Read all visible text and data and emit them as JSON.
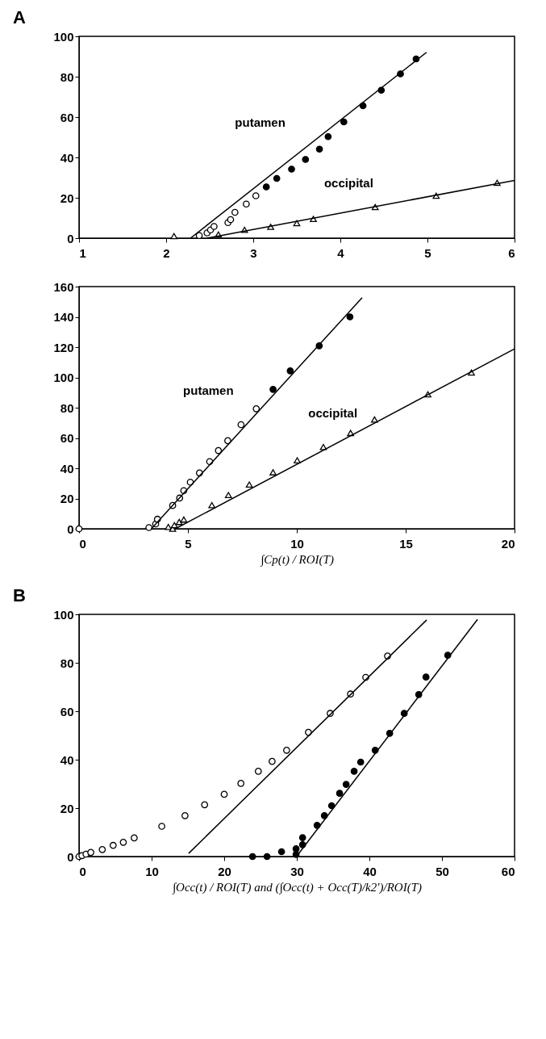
{
  "chart_data": [
    {
      "type": "scatter",
      "title": "A",
      "xlim": [
        1,
        6
      ],
      "ylim": [
        0,
        100
      ],
      "xticks": [
        1,
        2,
        3,
        4,
        5,
        6
      ],
      "yticks": [
        0,
        20,
        40,
        60,
        80,
        100
      ],
      "grid": false,
      "series": [
        {
          "marker": "circle",
          "color": "#ffffff",
          "x": [
            2.38,
            2.47,
            2.51,
            2.55,
            2.71,
            2.74,
            2.79,
            2.92,
            3.03
          ],
          "values": [
            1.3,
            2.6,
            4.1,
            5.8,
            7.7,
            9.2,
            12.8,
            16.9,
            21.0
          ]
        },
        {
          "marker": "circle",
          "color": "#000000",
          "x": [
            3.15,
            3.27,
            3.44,
            3.6,
            3.76,
            3.86,
            4.04,
            4.26,
            4.47,
            4.69,
            4.87
          ],
          "values": [
            25.4,
            29.6,
            34.2,
            39.0,
            44.1,
            50.3,
            57.6,
            65.6,
            73.3,
            81.4,
            88.8
          ]
        },
        {
          "marker": "triangle",
          "color": "#ffffff",
          "x": [
            2.09,
            2.6,
            2.9,
            3.2,
            3.5,
            3.69,
            4.4,
            5.1,
            5.8
          ],
          "values": [
            1.0,
            1.8,
            4.1,
            5.6,
            7.4,
            9.5,
            15.4,
            21.0,
            27.4
          ]
        },
        {
          "type": "line",
          "name": "putamen",
          "marker": "none",
          "color": "#000000",
          "x": [
            2.28,
            4.99
          ],
          "values": [
            0,
            92.1
          ]
        },
        {
          "type": "line",
          "name": "occipital",
          "marker": "none",
          "color": "#000000",
          "x": [
            2.47,
            6
          ],
          "values": [
            0,
            28.6
          ]
        }
      ]
    },
    {
      "type": "scatter",
      "xlabel": "∫Cp(t) / ROI(T)",
      "xlim": [
        0,
        20
      ],
      "ylim": [
        0,
        160
      ],
      "xticks": [
        0,
        5,
        10,
        15,
        20
      ],
      "yticks": [
        0,
        20,
        40,
        60,
        80,
        100,
        120,
        140,
        160
      ],
      "grid": false,
      "series": [
        {
          "marker": "circle",
          "color": "#ffffff",
          "x": [
            0,
            3.21,
            3.52,
            3.6,
            4.3,
            4.62,
            4.81,
            5.11,
            5.53,
            6.0,
            6.4,
            6.83,
            7.44,
            8.14
          ],
          "values": [
            0,
            0.8,
            3.2,
            6.3,
            15.4,
            20.3,
            25.2,
            30.8,
            36.9,
            44.4,
            51.7,
            58.2,
            68.8,
            79.3
          ]
        },
        {
          "marker": "circle",
          "color": "#000000",
          "x": [
            8.91,
            9.7,
            11.03,
            12.44
          ],
          "values": [
            92.1,
            104.3,
            120.9,
            140.0
          ]
        },
        {
          "marker": "triangle",
          "color": "#ffffff",
          "x": [
            4.1,
            4.3,
            4.38,
            4.6,
            4.81,
            6.1,
            6.86,
            7.82,
            8.91,
            10.02,
            11.22,
            12.47,
            13.57,
            16.02,
            18.02
          ],
          "values": [
            1.2,
            0,
            2.4,
            4.5,
            6.1,
            15.6,
            22.3,
            29.2,
            37.3,
            45.2,
            54.0,
            63.3,
            72.2,
            88.8,
            103.2
          ]
        },
        {
          "type": "line",
          "name": "putamen",
          "marker": "none",
          "color": "#000000",
          "x": [
            3.32,
            13.0
          ],
          "values": [
            0,
            152.7
          ]
        },
        {
          "type": "line",
          "name": "occipital",
          "marker": "none",
          "color": "#000000",
          "x": [
            4.42,
            20
          ],
          "values": [
            0,
            118.9
          ]
        }
      ]
    },
    {
      "type": "scatter",
      "title": "B",
      "xlabel": "∫Occ(t) / ROI(T) and (∫Occ(t) + Occ(T)/k2′)/ROI(T)",
      "xlim": [
        0,
        60
      ],
      "ylim": [
        0,
        100
      ],
      "xticks": [
        0,
        10,
        20,
        30,
        40,
        50,
        60
      ],
      "yticks": [
        0,
        20,
        40,
        60,
        80,
        100
      ],
      "grid": false,
      "series": [
        {
          "marker": "circle",
          "color": "#ffffff",
          "x": [
            0,
            0.4,
            0.96,
            1.62,
            3.2,
            4.7,
            6.1,
            7.6,
            11.4,
            14.6,
            17.3,
            20.0,
            22.3,
            24.7,
            26.6,
            28.6,
            31.6,
            34.6,
            37.4,
            39.5,
            42.5
          ],
          "values": [
            0,
            0.4,
            1.0,
            1.7,
            2.9,
            4.6,
            5.9,
            7.7,
            12.5,
            16.9,
            21.4,
            25.7,
            30.2,
            35.2,
            39.3,
            43.9,
            51.3,
            59.1,
            67.1,
            74.0,
            82.8
          ]
        },
        {
          "marker": "circle",
          "color": "#000000",
          "x": [
            23.9,
            25.9,
            27.9,
            29.9,
            29.9,
            30.8,
            30.8,
            32.8,
            33.8,
            34.8,
            35.9,
            36.8,
            37.9,
            38.8,
            40.8,
            42.8,
            44.8,
            46.8,
            47.8,
            50.8
          ],
          "values": [
            0,
            0,
            2.0,
            0.9,
            3.2,
            4.9,
            7.8,
            12.9,
            16.9,
            21.0,
            26.1,
            29.8,
            35.2,
            39.0,
            43.9,
            50.9,
            59.1,
            66.9,
            74.1,
            83.1
          ]
        },
        {
          "type": "line",
          "marker": "none",
          "color": "#000000",
          "x": [
            15.1,
            47.9
          ],
          "values": [
            1.3,
            97.7
          ]
        },
        {
          "type": "line",
          "marker": "none",
          "color": "#000000",
          "x": [
            29.95,
            54.9
          ],
          "values": [
            0,
            97.9
          ]
        }
      ]
    }
  ]
}
